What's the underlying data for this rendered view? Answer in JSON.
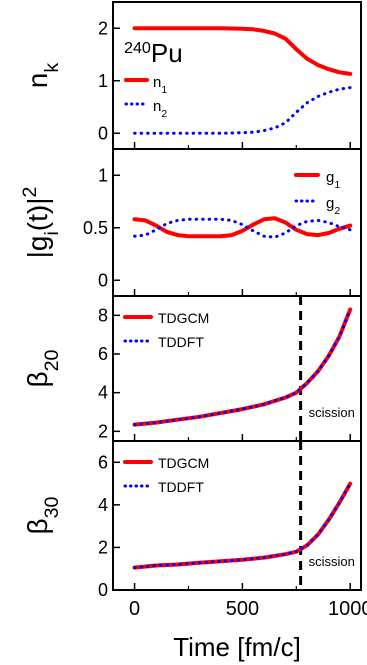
{
  "chart_data": [
    {
      "type": "line",
      "panel_id": "nk",
      "ylabel": "n",
      "ylabel_sub": "k",
      "ylim": [
        -0.3,
        2.5
      ],
      "yticks": [
        0,
        1,
        2
      ],
      "xlim": [
        -100,
        1050
      ],
      "grid": false,
      "annotation": {
        "sup": "240",
        "text": "Pu"
      },
      "legend_position": "top-left",
      "series": [
        {
          "name": "n",
          "sub": "1",
          "color": "#ff0000",
          "style": "solid",
          "x": [
            0,
            100,
            200,
            300,
            400,
            500,
            550,
            600,
            650,
            700,
            750,
            800,
            850,
            900,
            950,
            1000
          ],
          "y": [
            2.0,
            2.0,
            2.0,
            2.0,
            2.0,
            1.99,
            1.98,
            1.95,
            1.9,
            1.8,
            1.6,
            1.42,
            1.3,
            1.22,
            1.16,
            1.13
          ]
        },
        {
          "name": "n",
          "sub": "2",
          "color": "#0000ff",
          "style": "dotted",
          "x": [
            0,
            100,
            200,
            300,
            400,
            500,
            550,
            600,
            650,
            700,
            750,
            800,
            850,
            900,
            950,
            1000
          ],
          "y": [
            0.0,
            0.0,
            0.0,
            0.0,
            0.0,
            0.01,
            0.02,
            0.05,
            0.1,
            0.2,
            0.4,
            0.58,
            0.7,
            0.78,
            0.84,
            0.87
          ]
        }
      ]
    },
    {
      "type": "line",
      "panel_id": "g",
      "ylabel": "|g",
      "ylabel_sub": "i",
      "ylabel_rest": "(t)|",
      "ylabel_sup": "2",
      "ylim": [
        -0.15,
        1.25
      ],
      "yticks": [
        0,
        0.5,
        1
      ],
      "xlim": [
        -100,
        1050
      ],
      "grid": false,
      "legend_position": "top-right",
      "series": [
        {
          "name": "g",
          "sub": "1",
          "color": "#ff0000",
          "style": "solid",
          "x": [
            0,
            50,
            100,
            150,
            200,
            250,
            300,
            350,
            400,
            450,
            500,
            550,
            600,
            650,
            700,
            750,
            800,
            850,
            900,
            950,
            1000
          ],
          "y": [
            0.58,
            0.57,
            0.52,
            0.46,
            0.43,
            0.42,
            0.42,
            0.42,
            0.42,
            0.43,
            0.47,
            0.53,
            0.58,
            0.59,
            0.55,
            0.48,
            0.44,
            0.43,
            0.45,
            0.49,
            0.52
          ]
        },
        {
          "name": "g",
          "sub": "2",
          "color": "#0000ff",
          "style": "dotted",
          "x": [
            0,
            50,
            100,
            150,
            200,
            250,
            300,
            350,
            400,
            450,
            500,
            550,
            600,
            650,
            700,
            750,
            800,
            850,
            900,
            950,
            1000
          ],
          "y": [
            0.42,
            0.43,
            0.48,
            0.54,
            0.57,
            0.58,
            0.58,
            0.58,
            0.58,
            0.57,
            0.53,
            0.47,
            0.42,
            0.41,
            0.45,
            0.52,
            0.56,
            0.57,
            0.55,
            0.51,
            0.48
          ]
        }
      ]
    },
    {
      "type": "line",
      "panel_id": "b20",
      "ylabel": "β",
      "ylabel_sub": "20",
      "ylim": [
        1.5,
        9.0
      ],
      "yticks": [
        2,
        4,
        6,
        8
      ],
      "xlim": [
        -100,
        1050
      ],
      "grid": false,
      "legend_position": "top-left",
      "scission_x": 770,
      "annotation_text": "scission",
      "series": [
        {
          "name": "TDGCM",
          "color": "#ff0000",
          "style": "solid",
          "x": [
            0,
            100,
            200,
            300,
            400,
            500,
            600,
            700,
            750,
            800,
            850,
            900,
            950,
            1000
          ],
          "y": [
            2.35,
            2.45,
            2.6,
            2.75,
            2.95,
            3.15,
            3.4,
            3.75,
            4.0,
            4.5,
            5.1,
            5.9,
            6.9,
            8.3
          ]
        },
        {
          "name": "TDDFT",
          "color": "#0000ff",
          "style": "dotted",
          "x": [
            0,
            100,
            200,
            300,
            400,
            500,
            600,
            700,
            750,
            800,
            850,
            900,
            950,
            1000
          ],
          "y": [
            2.35,
            2.45,
            2.6,
            2.75,
            2.95,
            3.15,
            3.4,
            3.75,
            4.0,
            4.5,
            5.1,
            5.9,
            6.9,
            8.3
          ]
        }
      ]
    },
    {
      "type": "line",
      "panel_id": "b30",
      "ylabel": "β",
      "ylabel_sub": "30",
      "ylim": [
        0,
        7.0
      ],
      "yticks": [
        0,
        2,
        4,
        6
      ],
      "xlim": [
        -100,
        1050
      ],
      "xlabel": "Time [fm/c]",
      "xticks": [
        0,
        500,
        1000
      ],
      "grid": false,
      "legend_position": "top-left",
      "scission_x": 770,
      "annotation_text": "scission",
      "series": [
        {
          "name": "TDGCM",
          "color": "#ff0000",
          "style": "solid",
          "x": [
            0,
            100,
            200,
            300,
            400,
            500,
            600,
            700,
            750,
            800,
            850,
            900,
            950,
            1000
          ],
          "y": [
            1.05,
            1.15,
            1.2,
            1.28,
            1.35,
            1.42,
            1.52,
            1.68,
            1.8,
            2.1,
            2.6,
            3.3,
            4.1,
            5.0
          ]
        },
        {
          "name": "TDDFT",
          "color": "#0000ff",
          "style": "dotted",
          "x": [
            0,
            100,
            200,
            300,
            400,
            500,
            600,
            700,
            750,
            800,
            850,
            900,
            950,
            1000
          ],
          "y": [
            1.05,
            1.15,
            1.2,
            1.28,
            1.35,
            1.42,
            1.52,
            1.68,
            1.8,
            2.1,
            2.6,
            3.3,
            4.1,
            5.0
          ]
        }
      ]
    }
  ]
}
